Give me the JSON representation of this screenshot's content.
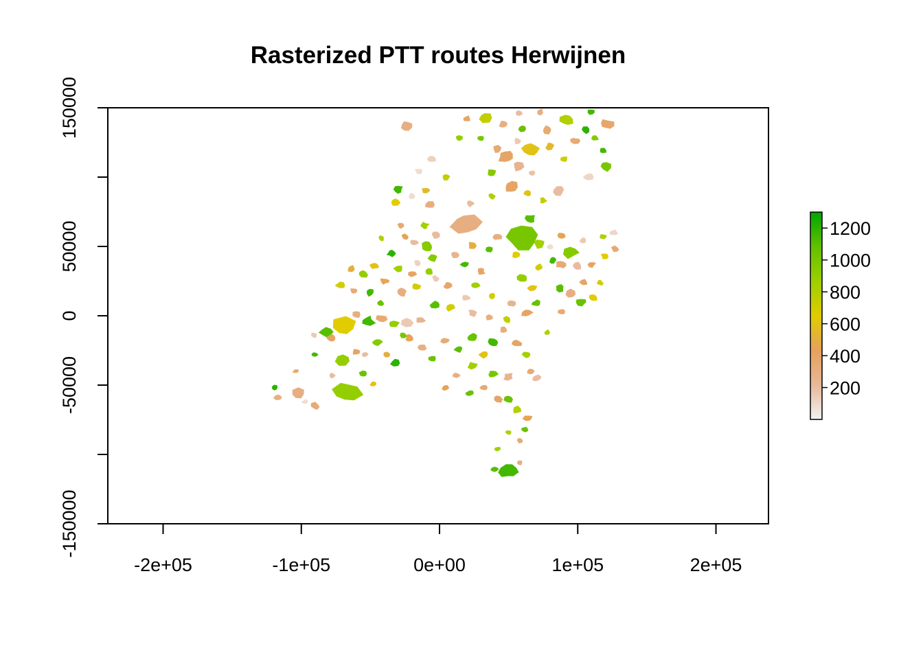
{
  "chart_data": {
    "type": "heatmap",
    "title": "Rasterized PTT routes Herwijnen",
    "xlabel": "",
    "ylabel": "",
    "xlim": [
      -240000,
      238000
    ],
    "ylim": [
      -150000,
      150000
    ],
    "x_ticks": [
      {
        "value": -200000,
        "label": "-2e+05"
      },
      {
        "value": -100000,
        "label": "-1e+05"
      },
      {
        "value": 0,
        "label": "0e+00"
      },
      {
        "value": 100000,
        "label": "1e+05"
      },
      {
        "value": 200000,
        "label": "2e+05"
      }
    ],
    "y_ticks": [
      {
        "value": -150000,
        "label": "-150000"
      },
      {
        "value": -100000,
        "label": ""
      },
      {
        "value": -50000,
        "label": "-50000"
      },
      {
        "value": 0,
        "label": "0"
      },
      {
        "value": 50000,
        "label": "50000"
      },
      {
        "value": 100000,
        "label": ""
      },
      {
        "value": 150000,
        "label": "150000"
      }
    ],
    "colorbar": {
      "min": 0,
      "max": 1300,
      "ticks": [
        {
          "value": 200,
          "label": "200"
        },
        {
          "value": 400,
          "label": "400"
        },
        {
          "value": 600,
          "label": "600"
        },
        {
          "value": 800,
          "label": "800"
        },
        {
          "value": 1000,
          "label": "1000"
        },
        {
          "value": 1200,
          "label": "1200"
        }
      ],
      "colors": [
        "#f2f2f2",
        "#e8b898",
        "#e6a15c",
        "#e1cc00",
        "#9dd000",
        "#61c000",
        "#00a600"
      ]
    },
    "patches": [
      {
        "x": -24000,
        "y": 137000,
        "r": 4200,
        "v": 300
      },
      {
        "x": -15000,
        "y": 104000,
        "r": 2500,
        "v": 80
      },
      {
        "x": -6000,
        "y": 113000,
        "r": 3000,
        "v": 120
      },
      {
        "x": 5000,
        "y": 100000,
        "r": 2600,
        "v": 750
      },
      {
        "x": 14000,
        "y": 128000,
        "r": 2200,
        "v": 900
      },
      {
        "x": 20000,
        "y": 142000,
        "r": 2600,
        "v": 380
      },
      {
        "x": 33000,
        "y": 143000,
        "r": 4500,
        "v": 750
      },
      {
        "x": 46000,
        "y": 138000,
        "r": 3200,
        "v": 300
      },
      {
        "x": 57000,
        "y": 146000,
        "r": 2600,
        "v": 200
      },
      {
        "x": 60000,
        "y": 135000,
        "r": 2600,
        "v": 1050
      },
      {
        "x": 66000,
        "y": 120000,
        "r": 4800,
        "v": 600
      },
      {
        "x": 48000,
        "y": 115000,
        "r": 5200,
        "v": 400
      },
      {
        "x": 57000,
        "y": 108000,
        "r": 4000,
        "v": 250
      },
      {
        "x": 52000,
        "y": 93000,
        "r": 5000,
        "v": 400
      },
      {
        "x": 38000,
        "y": 103000,
        "r": 3000,
        "v": 950
      },
      {
        "x": 78000,
        "y": 134000,
        "r": 3200,
        "v": 350
      },
      {
        "x": 80000,
        "y": 122000,
        "r": 3000,
        "v": 550
      },
      {
        "x": 92000,
        "y": 141000,
        "r": 4500,
        "v": 800
      },
      {
        "x": 106000,
        "y": 134000,
        "r": 3200,
        "v": 1200
      },
      {
        "x": 121000,
        "y": 138000,
        "r": 4000,
        "v": 380
      },
      {
        "x": 118000,
        "y": 119000,
        "r": 2600,
        "v": 1150
      },
      {
        "x": 120000,
        "y": 108000,
        "r": 4200,
        "v": 1000
      },
      {
        "x": 108000,
        "y": 100000,
        "r": 3200,
        "v": 100
      },
      {
        "x": 90000,
        "y": 113000,
        "r": 2800,
        "v": 700
      },
      {
        "x": 86000,
        "y": 90000,
        "r": 3600,
        "v": 200
      },
      {
        "x": 67000,
        "y": 103000,
        "r": 2400,
        "v": 180
      },
      {
        "x": 75000,
        "y": 83000,
        "r": 2600,
        "v": 750
      },
      {
        "x": 64000,
        "y": 88000,
        "r": 2600,
        "v": 600
      },
      {
        "x": -30000,
        "y": 91000,
        "r": 3000,
        "v": 1150
      },
      {
        "x": -32000,
        "y": 82000,
        "r": 2800,
        "v": 650
      },
      {
        "x": -20000,
        "y": 86000,
        "r": 2600,
        "v": 80
      },
      {
        "x": -10000,
        "y": 90000,
        "r": 2600,
        "v": 550
      },
      {
        "x": -7000,
        "y": 80000,
        "r": 3000,
        "v": 300
      },
      {
        "x": -11000,
        "y": 65000,
        "r": 2700,
        "v": 850
      },
      {
        "x": -28000,
        "y": 65000,
        "r": 2400,
        "v": 350
      },
      {
        "x": 22000,
        "y": 81000,
        "r": 2600,
        "v": 200
      },
      {
        "x": 38000,
        "y": 86000,
        "r": 2400,
        "v": 800
      },
      {
        "x": 19000,
        "y": 66000,
        "r": 9000,
        "v": 300
      },
      {
        "x": 60000,
        "y": 56000,
        "r": 9500,
        "v": 1000
      },
      {
        "x": 66000,
        "y": 70000,
        "r": 3500,
        "v": 1100
      },
      {
        "x": 72000,
        "y": 52000,
        "r": 3600,
        "v": 850
      },
      {
        "x": 55000,
        "y": 44000,
        "r": 3000,
        "v": 650
      },
      {
        "x": 42000,
        "y": 57000,
        "r": 3000,
        "v": 300
      },
      {
        "x": 36000,
        "y": 48000,
        "r": 2600,
        "v": 1100
      },
      {
        "x": 24000,
        "y": 51000,
        "r": 3000,
        "v": 500
      },
      {
        "x": 18000,
        "y": 37000,
        "r": 2500,
        "v": 1150
      },
      {
        "x": 11000,
        "y": 44000,
        "r": 2600,
        "v": 250
      },
      {
        "x": -5000,
        "y": 42000,
        "r": 3500,
        "v": 950
      },
      {
        "x": -9000,
        "y": 50000,
        "r": 3600,
        "v": 950
      },
      {
        "x": -18000,
        "y": 53000,
        "r": 2400,
        "v": 200
      },
      {
        "x": -25000,
        "y": 57000,
        "r": 2400,
        "v": 450
      },
      {
        "x": -42000,
        "y": 56000,
        "r": 2200,
        "v": 800
      },
      {
        "x": -35000,
        "y": 45000,
        "r": 2600,
        "v": 1200
      },
      {
        "x": -47000,
        "y": 36000,
        "r": 2600,
        "v": 600
      },
      {
        "x": -30000,
        "y": 34000,
        "r": 3000,
        "v": 850
      },
      {
        "x": -20000,
        "y": 30000,
        "r": 2800,
        "v": 400
      },
      {
        "x": -7000,
        "y": 32000,
        "r": 2600,
        "v": 900
      },
      {
        "x": -16000,
        "y": 38000,
        "r": 2400,
        "v": 120
      },
      {
        "x": -55000,
        "y": 30000,
        "r": 2800,
        "v": 900
      },
      {
        "x": -64000,
        "y": 34000,
        "r": 2600,
        "v": 500
      },
      {
        "x": -72000,
        "y": 22000,
        "r": 2800,
        "v": 700
      },
      {
        "x": -62000,
        "y": 18000,
        "r": 2600,
        "v": 350
      },
      {
        "x": -50000,
        "y": 17000,
        "r": 3200,
        "v": 1150
      },
      {
        "x": -43000,
        "y": 9000,
        "r": 2600,
        "v": 1050
      },
      {
        "x": -40000,
        "y": 25000,
        "r": 2600,
        "v": 450
      },
      {
        "x": -27000,
        "y": 17000,
        "r": 3400,
        "v": 300
      },
      {
        "x": -17000,
        "y": 21000,
        "r": 2800,
        "v": 700
      },
      {
        "x": -3000,
        "y": 27000,
        "r": 2400,
        "v": 150
      },
      {
        "x": 6000,
        "y": 22000,
        "r": 3000,
        "v": 380
      },
      {
        "x": 19000,
        "y": 13000,
        "r": 2600,
        "v": 150
      },
      {
        "x": 26000,
        "y": 22000,
        "r": 3000,
        "v": 850
      },
      {
        "x": 38000,
        "y": 14000,
        "r": 2400,
        "v": 700
      },
      {
        "x": 52000,
        "y": 9000,
        "r": 3000,
        "v": 250
      },
      {
        "x": 60000,
        "y": 27000,
        "r": 3400,
        "v": 900
      },
      {
        "x": 67000,
        "y": 20000,
        "r": 3000,
        "v": 600
      },
      {
        "x": 72000,
        "y": 35000,
        "r": 2600,
        "v": 700
      },
      {
        "x": 82000,
        "y": 40000,
        "r": 2600,
        "v": 1150
      },
      {
        "x": 95000,
        "y": 46000,
        "r": 5000,
        "v": 950
      },
      {
        "x": 88000,
        "y": 37000,
        "r": 3000,
        "v": 350
      },
      {
        "x": 100000,
        "y": 36000,
        "r": 3000,
        "v": 200
      },
      {
        "x": 110000,
        "y": 37000,
        "r": 2600,
        "v": 400
      },
      {
        "x": 120000,
        "y": 43000,
        "r": 2600,
        "v": 650
      },
      {
        "x": 127000,
        "y": 48000,
        "r": 2600,
        "v": 350
      },
      {
        "x": 126000,
        "y": 60000,
        "r": 2400,
        "v": 100
      },
      {
        "x": 118000,
        "y": 57000,
        "r": 2200,
        "v": 800
      },
      {
        "x": 104000,
        "y": 54000,
        "r": 2400,
        "v": 150
      },
      {
        "x": 88000,
        "y": 58000,
        "r": 2600,
        "v": 450
      },
      {
        "x": 80000,
        "y": 50000,
        "r": 2200,
        "v": 80
      },
      {
        "x": 87000,
        "y": 20000,
        "r": 3200,
        "v": 1100
      },
      {
        "x": 95000,
        "y": 16000,
        "r": 3600,
        "v": 300
      },
      {
        "x": 103000,
        "y": 10000,
        "r": 3200,
        "v": 1050
      },
      {
        "x": 111000,
        "y": 13000,
        "r": 3000,
        "v": 650
      },
      {
        "x": 104000,
        "y": 24000,
        "r": 2600,
        "v": 400
      },
      {
        "x": 116000,
        "y": 24000,
        "r": 2400,
        "v": 700
      },
      {
        "x": 88000,
        "y": 3000,
        "r": 2400,
        "v": 350
      },
      {
        "x": 70000,
        "y": 9000,
        "r": 2800,
        "v": 1050
      },
      {
        "x": 63000,
        "y": 2000,
        "r": 3600,
        "v": 400
      },
      {
        "x": 49000,
        "y": -3000,
        "r": 2800,
        "v": 750
      },
      {
        "x": 36000,
        "y": -1000,
        "r": 2600,
        "v": 300
      },
      {
        "x": 24000,
        "y": 2000,
        "r": 3000,
        "v": 200
      },
      {
        "x": 8000,
        "y": 6000,
        "r": 3000,
        "v": 700
      },
      {
        "x": -3000,
        "y": 8000,
        "r": 3200,
        "v": 1100
      },
      {
        "x": -14000,
        "y": -3000,
        "r": 2800,
        "v": 250
      },
      {
        "x": -23000,
        "y": -5000,
        "r": 3600,
        "v": 150
      },
      {
        "x": -33000,
        "y": -6000,
        "r": 3000,
        "v": 900
      },
      {
        "x": -42000,
        "y": -2000,
        "r": 3200,
        "v": 350
      },
      {
        "x": -52000,
        "y": -4000,
        "r": 4200,
        "v": 1150
      },
      {
        "x": -60000,
        "y": 1000,
        "r": 2800,
        "v": 300
      },
      {
        "x": -69000,
        "y": -8000,
        "r": 7500,
        "v": 650
      },
      {
        "x": -82000,
        "y": -12000,
        "r": 4000,
        "v": 1100
      },
      {
        "x": -91000,
        "y": -14000,
        "r": 2200,
        "v": 150
      },
      {
        "x": -90000,
        "y": -28000,
        "r": 2000,
        "v": 1150
      },
      {
        "x": -78000,
        "y": -16000,
        "r": 3000,
        "v": 400
      },
      {
        "x": -70000,
        "y": -32000,
        "r": 4400,
        "v": 900
      },
      {
        "x": -60000,
        "y": -26000,
        "r": 2600,
        "v": 400
      },
      {
        "x": -55000,
        "y": -42000,
        "r": 2600,
        "v": 1050
      },
      {
        "x": -45000,
        "y": -19000,
        "r": 3000,
        "v": 950
      },
      {
        "x": -38000,
        "y": -28000,
        "r": 2600,
        "v": 500
      },
      {
        "x": -32000,
        "y": -34000,
        "r": 3000,
        "v": 1200
      },
      {
        "x": -22000,
        "y": -16000,
        "r": 2800,
        "v": 450
      },
      {
        "x": -12000,
        "y": -23000,
        "r": 3000,
        "v": 300
      },
      {
        "x": -5000,
        "y": -31000,
        "r": 2400,
        "v": 1050
      },
      {
        "x": 4000,
        "y": -18000,
        "r": 2600,
        "v": 350
      },
      {
        "x": 14000,
        "y": -24000,
        "r": 2600,
        "v": 1100
      },
      {
        "x": 24000,
        "y": -16000,
        "r": 3400,
        "v": 1050
      },
      {
        "x": 32000,
        "y": -28000,
        "r": 2800,
        "v": 600
      },
      {
        "x": 39000,
        "y": -19000,
        "r": 3200,
        "v": 1150
      },
      {
        "x": 46000,
        "y": -10000,
        "r": 2600,
        "v": 300
      },
      {
        "x": 56000,
        "y": -20000,
        "r": 3000,
        "v": 400
      },
      {
        "x": 63000,
        "y": -28000,
        "r": 2800,
        "v": 850
      },
      {
        "x": 66000,
        "y": -40000,
        "r": 2600,
        "v": 350
      },
      {
        "x": 70000,
        "y": -45000,
        "r": 2800,
        "v": 200
      },
      {
        "x": 50000,
        "y": -44000,
        "r": 3400,
        "v": 250
      },
      {
        "x": 38000,
        "y": -42000,
        "r": 3000,
        "v": 1000
      },
      {
        "x": 24000,
        "y": -36000,
        "r": 3000,
        "v": 850
      },
      {
        "x": 12000,
        "y": -43000,
        "r": 2600,
        "v": 300
      },
      {
        "x": 4000,
        "y": -52000,
        "r": 2400,
        "v": 450
      },
      {
        "x": 22000,
        "y": -56000,
        "r": 2400,
        "v": 1050
      },
      {
        "x": 32000,
        "y": -52000,
        "r": 2400,
        "v": 350
      },
      {
        "x": 42000,
        "y": -60000,
        "r": 3400,
        "v": 400
      },
      {
        "x": 50000,
        "y": -60000,
        "r": 3000,
        "v": 1050
      },
      {
        "x": 56000,
        "y": -68000,
        "r": 3000,
        "v": 800
      },
      {
        "x": 64000,
        "y": -74000,
        "r": 2800,
        "v": 450
      },
      {
        "x": 62000,
        "y": -82000,
        "r": 2200,
        "v": 1050
      },
      {
        "x": 50000,
        "y": -84000,
        "r": 2000,
        "v": 800
      },
      {
        "x": 58000,
        "y": -90000,
        "r": 2000,
        "v": 350
      },
      {
        "x": 42000,
        "y": -96000,
        "r": 2000,
        "v": 850
      },
      {
        "x": 50000,
        "y": -112000,
        "r": 5000,
        "v": 1150
      },
      {
        "x": 40000,
        "y": -111000,
        "r": 2400,
        "v": 1100
      },
      {
        "x": 58000,
        "y": -106000,
        "r": 2200,
        "v": 300
      },
      {
        "x": -54000,
        "y": -28000,
        "r": 2200,
        "v": 200
      },
      {
        "x": -67000,
        "y": -55000,
        "r": 7800,
        "v": 900
      },
      {
        "x": -102000,
        "y": -56000,
        "r": 4600,
        "v": 300
      },
      {
        "x": -90000,
        "y": -65000,
        "r": 3000,
        "v": 350
      },
      {
        "x": -117000,
        "y": -59000,
        "r": 2600,
        "v": 300
      },
      {
        "x": -119000,
        "y": -52000,
        "r": 2200,
        "v": 1200
      },
      {
        "x": -97000,
        "y": -62000,
        "r": 2000,
        "v": 80
      },
      {
        "x": -104000,
        "y": -40000,
        "r": 2000,
        "v": 350
      },
      {
        "x": -78000,
        "y": -43000,
        "r": 2000,
        "v": 200
      },
      {
        "x": -48000,
        "y": -49000,
        "r": 2200,
        "v": 600
      },
      {
        "x": 42000,
        "y": 120000,
        "r": 3000,
        "v": 350
      },
      {
        "x": 56000,
        "y": 126000,
        "r": 2400,
        "v": 150
      },
      {
        "x": 98000,
        "y": 126000,
        "r": 2600,
        "v": 350
      },
      {
        "x": 112000,
        "y": 128000,
        "r": 2400,
        "v": 950
      },
      {
        "x": 30000,
        "y": 128000,
        "r": 2400,
        "v": 1000
      },
      {
        "x": 73000,
        "y": 147000,
        "r": 2600,
        "v": 300
      },
      {
        "x": 110000,
        "y": 147000,
        "r": 2400,
        "v": 1150
      },
      {
        "x": -3000,
        "y": 58000,
        "r": 2800,
        "v": 200
      },
      {
        "x": 30000,
        "y": 32000,
        "r": 2600,
        "v": 400
      },
      {
        "x": -26000,
        "y": -14000,
        "r": 2400,
        "v": 1000
      },
      {
        "x": 78000,
        "y": -12000,
        "r": 2200,
        "v": 800
      }
    ]
  }
}
